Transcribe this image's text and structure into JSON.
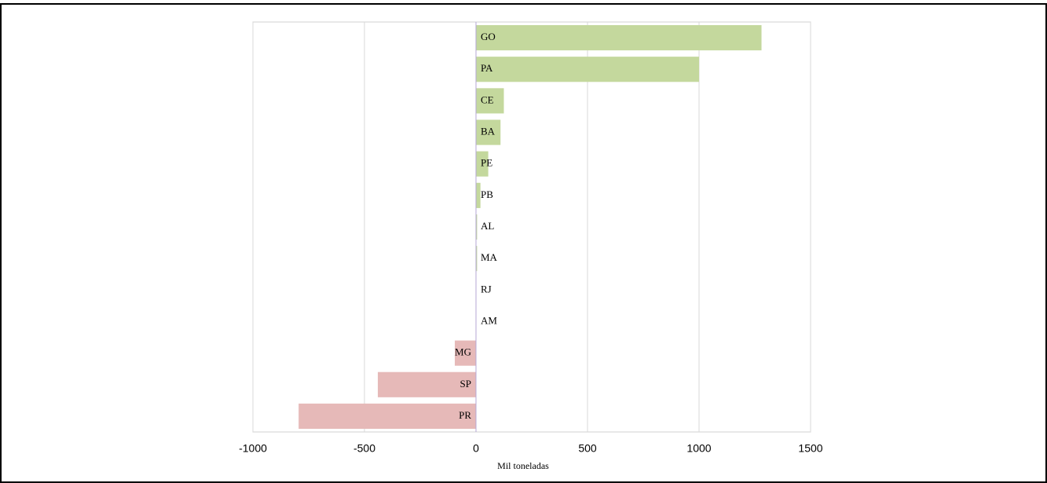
{
  "chart_data": {
    "type": "hbar",
    "x_label": "Mil toneladas",
    "categories": [
      "GO",
      "PA",
      "CE",
      "BA",
      "PE",
      "PB",
      "AL",
      "MA",
      "RJ",
      "AM",
      "MG",
      "SP",
      "PR"
    ],
    "values": [
      1280,
      1000,
      125,
      110,
      55,
      20,
      5,
      5,
      1,
      1,
      -95,
      -440,
      -795
    ],
    "positive_color": "#c4d89d",
    "negative_color": "#e6b9b8",
    "xlim": [
      -1000,
      1500
    ],
    "xticks": [
      -1000,
      -500,
      0,
      500,
      1000,
      1500
    ],
    "grid": true
  }
}
